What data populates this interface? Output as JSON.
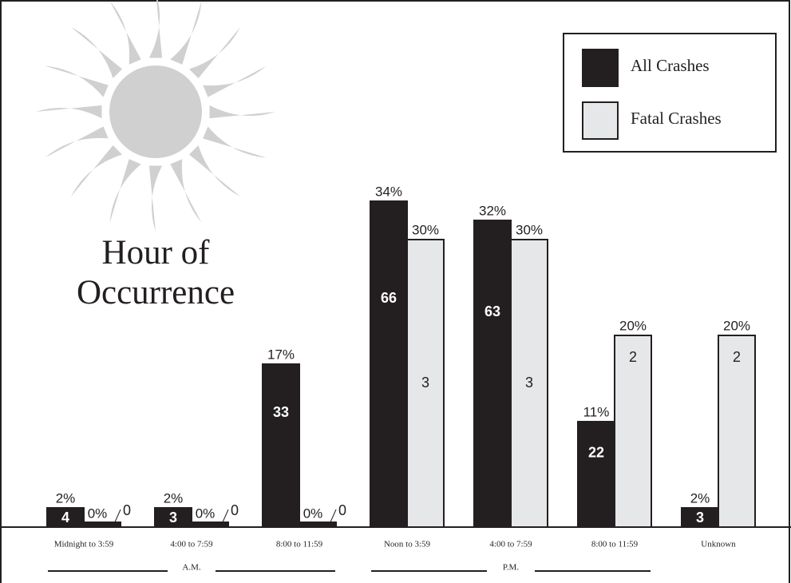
{
  "chart_data": {
    "type": "bar",
    "title": "Hour of Occurrence",
    "categories": [
      "Midnight to 3:59",
      "4:00 to 7:59",
      "8:00 to 11:59",
      "Noon to 3:59",
      "4:00 to 7:59",
      "8:00 to 11:59",
      "Unknown"
    ],
    "groups": [
      "A.M.",
      "P.M."
    ],
    "series": [
      {
        "name": "All Crashes",
        "color": "#231f20",
        "values": [
          2,
          2,
          17,
          34,
          32,
          11,
          2
        ],
        "value_labels": [
          "2%",
          "2%",
          "17%",
          "34%",
          "32%",
          "11%",
          "2%"
        ],
        "counts": [
          4,
          3,
          33,
          66,
          63,
          22,
          3
        ]
      },
      {
        "name": "Fatal Crashes",
        "color": "#e6e7e8",
        "values": [
          0,
          0,
          0,
          30,
          30,
          20,
          20
        ],
        "value_labels": [
          "0%",
          "0%",
          "0%",
          "30%",
          "30%",
          "20%",
          "20%"
        ],
        "counts": [
          0,
          0,
          0,
          3,
          3,
          2,
          2
        ]
      }
    ],
    "legend": "top-right"
  }
}
